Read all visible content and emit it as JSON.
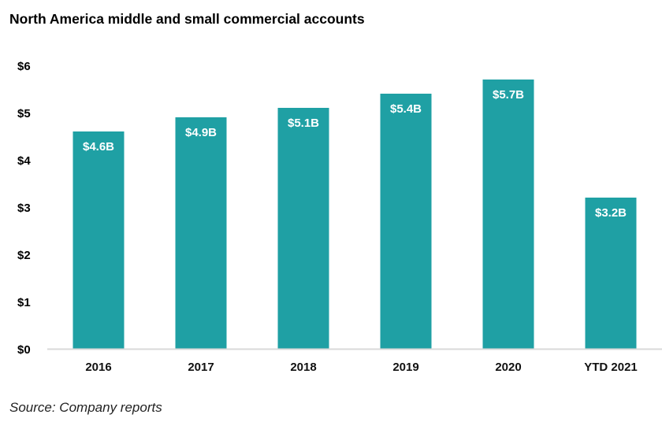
{
  "chart_data": {
    "type": "bar",
    "title": "North America middle and small commercial accounts",
    "xlabel": "",
    "ylabel": "",
    "categories": [
      "2016",
      "2017",
      "2018",
      "2019",
      "2020",
      "YTD 2021"
    ],
    "values": [
      4.6,
      4.9,
      5.1,
      5.4,
      5.7,
      3.2
    ],
    "data_labels": [
      "$4.6B",
      "$4.9B",
      "$5.1B",
      "$5.4B",
      "$5.7B",
      "$3.2B"
    ],
    "ylim": [
      0,
      6
    ],
    "yticks": [
      0,
      1,
      2,
      3,
      4,
      5,
      6
    ],
    "ytick_labels": [
      "$0",
      "$1",
      "$2",
      "$3",
      "$4",
      "$5",
      "$6"
    ],
    "grid": false,
    "legend": "none",
    "bar_color": "#1fa0a4",
    "axis_color": "#d9d9d9",
    "source": "Source: Company reports"
  }
}
